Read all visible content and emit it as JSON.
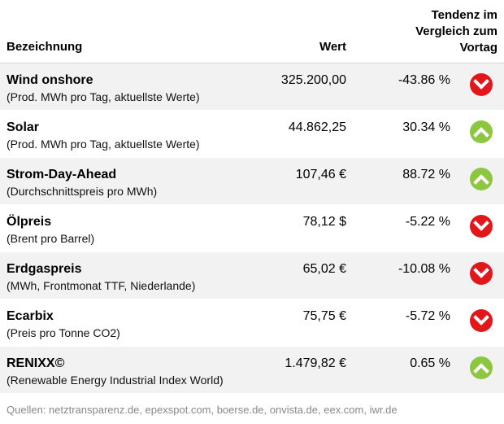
{
  "header": {
    "name_label": "Bezeichnung",
    "value_label": "Wert",
    "trend_lines": [
      "Tendenz im",
      "Vergleich zum",
      "Vortag"
    ]
  },
  "rows": [
    {
      "title": "Wind onshore",
      "subtitle": "(Prod. MWh pro Tag, aktuellste Werte)",
      "value": "325.200,00",
      "change": "-43.86 %",
      "trend": "down"
    },
    {
      "title": "Solar",
      "subtitle": "(Prod. MWh pro Tag, aktuellste Werte)",
      "value": "44.862,25",
      "change": "30.34 %",
      "trend": "up"
    },
    {
      "title": "Strom-Day-Ahead",
      "subtitle": "(Durchschnittspreis pro MWh)",
      "value": "107,46 €",
      "change": "88.72 %",
      "trend": "up"
    },
    {
      "title": "Ölpreis",
      "subtitle": "(Brent pro Barrel)",
      "value": "78,12 $",
      "change": "-5.22 %",
      "trend": "down"
    },
    {
      "title": "Erdgaspreis",
      "subtitle": "(MWh, Frontmonat TTF, Niederlande)",
      "value": "65,02 €",
      "change": "-10.08 %",
      "trend": "down"
    },
    {
      "title": "Ecarbix",
      "subtitle": "(Preis pro Tonne CO2)",
      "value": "75,75 €",
      "change": "-5.72 %",
      "trend": "down"
    },
    {
      "title": "RENIXX©",
      "subtitle": "(Renewable Energy Industrial Index World)",
      "value": "1.479,82 €",
      "change": "0.65 %",
      "trend": "up"
    }
  ],
  "footer": "Quellen: netztransparenz.de, epexspot.com, boerse.de, onvista.de, eex.com, iwr.de",
  "colors": {
    "down": "#e3161b",
    "up": "#8dc63f",
    "row_alt": "#f2f2f2",
    "footer_text": "#888888"
  },
  "icons": {
    "down": "chevron-down-circle-icon",
    "up": "chevron-up-circle-icon"
  }
}
